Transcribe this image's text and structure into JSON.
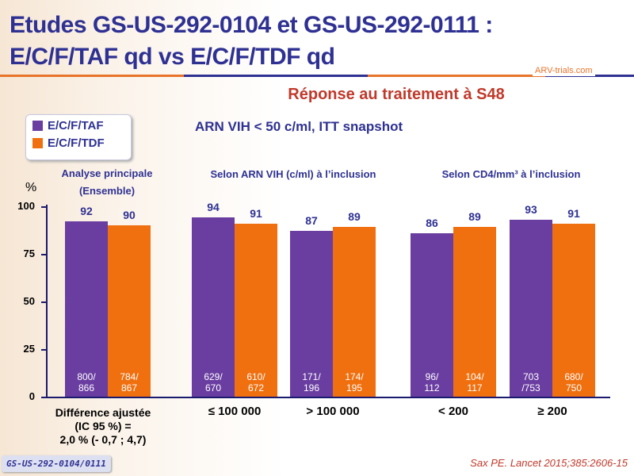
{
  "header": {
    "title_line1": "Etudes GS-US-292-0104 et GS-US-292-0111 :",
    "title_line2": "E/C/F/TAF qd vs E/C/F/TDF qd",
    "logo": "ARV-trials.com"
  },
  "colors": {
    "taf": "#6a3ea1",
    "tdf": "#f07010",
    "axis": "#1a1a6e"
  },
  "chart_data": {
    "type": "bar",
    "title": "Réponse au traitement à S48",
    "subtitle": "ARN VIH < 50 c/ml, ITT snapshot",
    "ylabel": "%",
    "ylim": [
      0,
      100
    ],
    "yticks": [
      0,
      25,
      50,
      75,
      100
    ],
    "legend": [
      "E/C/F/TAF",
      "E/C/F/TDF"
    ],
    "legend_position": "top-left",
    "group_headers": [
      {
        "label": "Analyse principale (Ensemble)"
      },
      {
        "label": "Selon ARN VIH (c/ml) à l’inclusion"
      },
      {
        "label": "Selon CD4/mm³ à l’inclusion"
      }
    ],
    "categories": [
      "",
      "≤ 100 000",
      "> 100 000",
      "< 200",
      "≥ 200"
    ],
    "series": [
      {
        "name": "E/C/F/TAF",
        "values": [
          92,
          94,
          87,
          86,
          93
        ],
        "n": [
          "800/ 866",
          "629/ 670",
          "171/ 196",
          "96/ 112",
          "703 /753"
        ]
      },
      {
        "name": "E/C/F/TDF",
        "values": [
          90,
          91,
          89,
          89,
          91
        ],
        "n": [
          "784/ 867",
          "610/ 672",
          "174/ 195",
          "104/ 117",
          "680/ 750"
        ]
      }
    ],
    "annotation": [
      "Différence ajustée",
      "(IC 95 %) =",
      "2,0 % (- 0,7 ; 4,7)"
    ]
  },
  "footer": {
    "study": "GS-US-292-0104/0111",
    "reference": "Sax PE. Lancet 2015;385:2606-15"
  }
}
